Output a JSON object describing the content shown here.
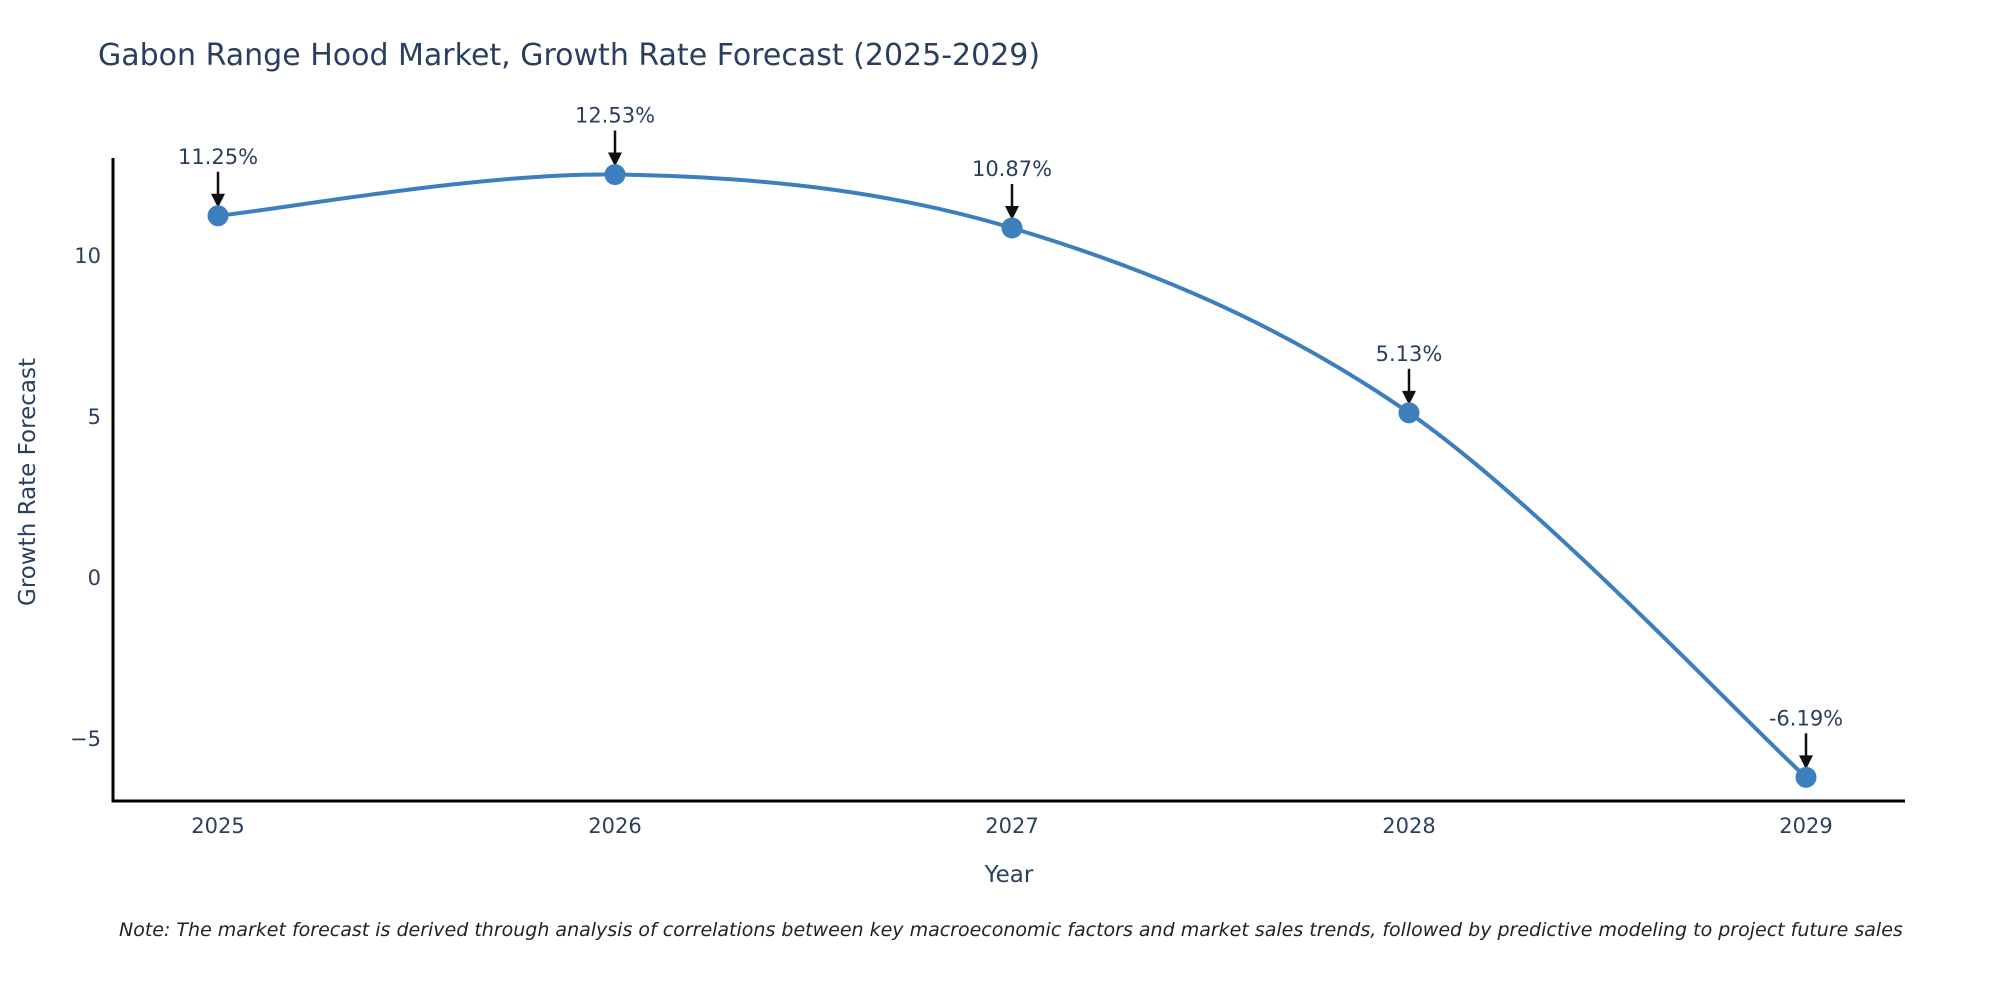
{
  "chart_data": {
    "type": "line",
    "line_shape": "spline",
    "title": "Gabon Range Hood Market, Growth Rate Forecast (2025-2029)",
    "xlabel": "Year",
    "ylabel": "Growth Rate Forecast",
    "categories": [
      "2025",
      "2026",
      "2027",
      "2028",
      "2029"
    ],
    "x": [
      2025,
      2026,
      2027,
      2028,
      2029
    ],
    "values": [
      11.25,
      12.53,
      10.87,
      5.13,
      -6.19
    ],
    "point_labels": [
      "11.25%",
      "12.53%",
      "10.87%",
      "5.13%",
      "-6.19%"
    ],
    "yticks": [
      10,
      5,
      0,
      -5
    ],
    "ylim": [
      -6.9,
      13.0
    ],
    "grid": false,
    "legend_position": "none",
    "line_color": "#3d7ebd",
    "marker_color": "#3d7ebd",
    "axis_line_color": "#000000",
    "tick_label_color": "#2a3f5f",
    "annotation_text_color": "#2a3f5f",
    "annotation_arrow_color": "#101010",
    "title_color": "#2a3f5f"
  },
  "note": {
    "text": "Note: The market forecast is derived through analysis of correlations between key macroeconomic factors and market sales trends, followed by predictive modeling to project future sales",
    "color": "#222222"
  }
}
